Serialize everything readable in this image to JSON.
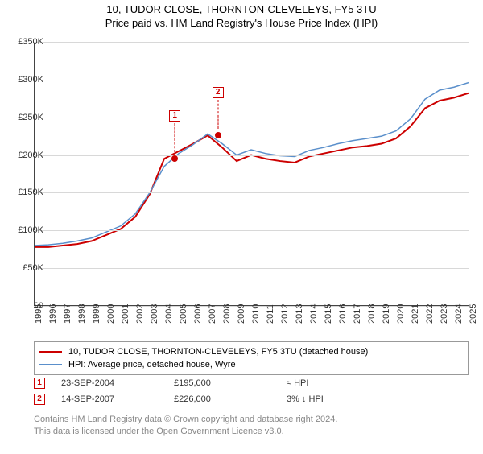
{
  "title": "10, TUDOR CLOSE, THORNTON-CLEVELEYS, FY5 3TU",
  "subtitle": "Price paid vs. HM Land Registry's House Price Index (HPI)",
  "chart": {
    "type": "line",
    "background_color": "#ffffff",
    "grid_color": "#d8d8d8",
    "band_color": "#ebeff5",
    "x_years": [
      1995,
      1996,
      1997,
      1998,
      1999,
      2000,
      2001,
      2002,
      2003,
      2004,
      2005,
      2006,
      2007,
      2008,
      2009,
      2010,
      2011,
      2012,
      2013,
      2014,
      2015,
      2016,
      2017,
      2018,
      2019,
      2020,
      2021,
      2022,
      2023,
      2024,
      2025
    ],
    "xlim": [
      1995,
      2025
    ],
    "ylim": [
      0,
      350000
    ],
    "ytick_step": 50000,
    "ytick_labels": [
      "£0",
      "£50K",
      "£100K",
      "£150K",
      "£200K",
      "£250K",
      "£300K",
      "£350K"
    ],
    "series": [
      {
        "name": "10, TUDOR CLOSE, THORNTON-CLEVELEYS, FY5 3TU (detached house)",
        "color": "#cc0000",
        "width": 2,
        "y_by_year": {
          "1995": 78000,
          "1996": 78000,
          "1997": 80000,
          "1998": 82000,
          "1999": 86000,
          "2000": 94000,
          "2001": 102000,
          "2002": 118000,
          "2003": 148000,
          "2004": 195000,
          "2005": 205000,
          "2006": 215000,
          "2007": 226000,
          "2008": 210000,
          "2009": 192000,
          "2010": 200000,
          "2011": 195000,
          "2012": 192000,
          "2013": 190000,
          "2014": 198000,
          "2015": 202000,
          "2016": 206000,
          "2017": 210000,
          "2018": 212000,
          "2019": 215000,
          "2020": 222000,
          "2021": 238000,
          "2022": 262000,
          "2023": 272000,
          "2024": 276000,
          "2025": 282000
        }
      },
      {
        "name": "HPI: Average price, detached house, Wyre",
        "color": "#5a8fcb",
        "width": 1.5,
        "y_by_year": {
          "1995": 80000,
          "1996": 81000,
          "1997": 83000,
          "1998": 86000,
          "1999": 90000,
          "2000": 98000,
          "2001": 106000,
          "2002": 122000,
          "2003": 150000,
          "2004": 185000,
          "2005": 202000,
          "2006": 214000,
          "2007": 228000,
          "2008": 215000,
          "2009": 200000,
          "2010": 207000,
          "2011": 202000,
          "2012": 199000,
          "2013": 198000,
          "2014": 206000,
          "2015": 210000,
          "2016": 215000,
          "2017": 219000,
          "2018": 222000,
          "2019": 225000,
          "2020": 232000,
          "2021": 248000,
          "2022": 274000,
          "2023": 286000,
          "2024": 290000,
          "2025": 296000
        }
      }
    ],
    "sale_markers": [
      {
        "idx": "1",
        "year": 2004.73,
        "price": 195000,
        "date": "23-SEP-2004",
        "pricetxt": "£195,000",
        "delta": "≈ HPI",
        "color": "#cc0000"
      },
      {
        "idx": "2",
        "year": 2007.7,
        "price": 226000,
        "date": "14-SEP-2007",
        "pricetxt": "£226,000",
        "delta": "3% ↓ HPI",
        "color": "#cc0000"
      }
    ]
  },
  "legend": {
    "rows": [
      {
        "color": "#cc0000",
        "width": 2,
        "label": "10, TUDOR CLOSE, THORNTON-CLEVELEYS, FY5 3TU (detached house)"
      },
      {
        "color": "#5a8fcb",
        "width": 1.5,
        "label": "HPI: Average price, detached house, Wyre"
      }
    ]
  },
  "footer": {
    "line1": "Contains HM Land Registry data © Crown copyright and database right 2024.",
    "line2": "This data is licensed under the Open Government Licence v3.0."
  }
}
